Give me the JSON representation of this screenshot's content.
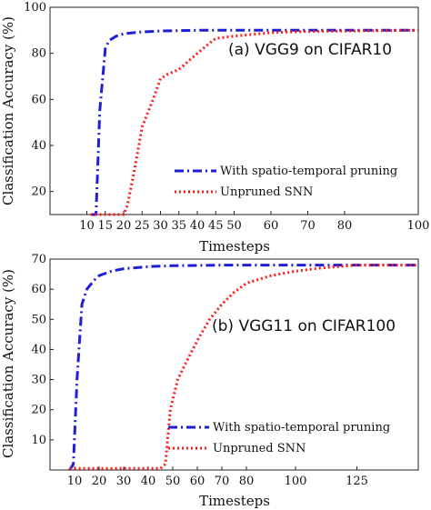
{
  "chart_data": [
    {
      "type": "line",
      "title": "(a) VGG9 on CIFAR10",
      "xlabel": "Timesteps",
      "ylabel": "Classification Accuracy (%)",
      "xlim": [
        0,
        100
      ],
      "ylim": [
        10,
        100
      ],
      "xticks": [
        10,
        15,
        20,
        25,
        30,
        35,
        40,
        45,
        50,
        60,
        70,
        80,
        100
      ],
      "xtick_labels": [
        "10",
        "15",
        "20",
        "25",
        "30",
        "35",
        "40",
        "45",
        "50",
        "60",
        "70",
        "80",
        "100"
      ],
      "yticks": [
        20,
        40,
        60,
        80,
        100
      ],
      "ytick_labels": [
        "20",
        "40",
        "60",
        "80",
        "100"
      ],
      "legend_position": "lower-right",
      "grid": false,
      "series": [
        {
          "name": "With spatio-temporal pruning",
          "color": "#1f1fd6",
          "style": "dashdot",
          "points": [
            [
              11,
              10
            ],
            [
              12.5,
              10
            ],
            [
              13.5,
              55
            ],
            [
              15,
              82
            ],
            [
              16,
              85.5
            ],
            [
              18,
              87.5
            ],
            [
              20,
              88.5
            ],
            [
              25,
              89.3
            ],
            [
              30,
              89.7
            ],
            [
              40,
              90
            ],
            [
              60,
              90
            ],
            [
              80,
              90
            ],
            [
              100,
              90
            ]
          ]
        },
        {
          "name": "Unpruned SNN",
          "color": "#ff1a1a",
          "style": "dotted",
          "points": [
            [
              11,
              10
            ],
            [
              20,
              10
            ],
            [
              21,
              14
            ],
            [
              23,
              30
            ],
            [
              25,
              48
            ],
            [
              28,
              60
            ],
            [
              30,
              69
            ],
            [
              32,
              71
            ],
            [
              35,
              73
            ],
            [
              40,
              80
            ],
            [
              43,
              84
            ],
            [
              45,
              86.5
            ],
            [
              50,
              87.5
            ],
            [
              60,
              89
            ],
            [
              70,
              89.5
            ],
            [
              80,
              89.7
            ],
            [
              100,
              90
            ]
          ]
        }
      ]
    },
    {
      "type": "line",
      "title": "(b) VGG11 on CIFAR100",
      "xlabel": "Timesteps",
      "ylabel": "Classification Accuracy (%)",
      "xlim": [
        0,
        150
      ],
      "ylim": [
        0,
        70
      ],
      "xticks": [
        10,
        20,
        30,
        40,
        50,
        60,
        70,
        80,
        100,
        125
      ],
      "xtick_labels": [
        "10",
        "20",
        "30",
        "40",
        "50",
        "60",
        "70",
        "80",
        "100",
        "125"
      ],
      "yticks": [
        10,
        20,
        30,
        40,
        50,
        60,
        70
      ],
      "ytick_labels": [
        "10",
        "20",
        "30",
        "40",
        "50",
        "60",
        "70"
      ],
      "legend_position": "lower-right",
      "grid": false,
      "series": [
        {
          "name": "With spatio-temporal pruning",
          "color": "#1f1fd6",
          "style": "dashdot",
          "points": [
            [
              8,
              0
            ],
            [
              9.5,
              2
            ],
            [
              11,
              30
            ],
            [
              13,
              55
            ],
            [
              15,
              60
            ],
            [
              18,
              63
            ],
            [
              20,
              64.5
            ],
            [
              25,
              66
            ],
            [
              30,
              66.8
            ],
            [
              40,
              67.5
            ],
            [
              50,
              67.8
            ],
            [
              70,
              68
            ],
            [
              100,
              68
            ],
            [
              125,
              68
            ],
            [
              150,
              68
            ]
          ]
        },
        {
          "name": "Unpruned SNN",
          "color": "#ff1a1a",
          "style": "dotted",
          "points": [
            [
              8,
              0.5
            ],
            [
              45,
              0.5
            ],
            [
              47,
              2
            ],
            [
              49,
              20
            ],
            [
              52,
              30
            ],
            [
              55,
              35
            ],
            [
              60,
              43
            ],
            [
              65,
              50
            ],
            [
              70,
              55
            ],
            [
              75,
              59
            ],
            [
              80,
              62
            ],
            [
              90,
              64.5
            ],
            [
              100,
              66
            ],
            [
              110,
              67
            ],
            [
              125,
              68
            ],
            [
              150,
              68
            ]
          ]
        }
      ]
    }
  ]
}
